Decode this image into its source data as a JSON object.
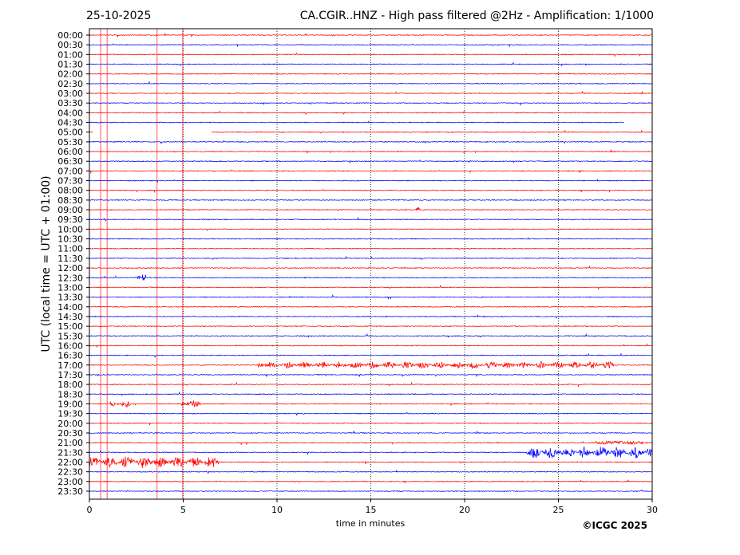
{
  "header": {
    "date": "25-10-2025",
    "title": "CA.CGIR..HNZ - High pass filtered @2Hz - Amplification: 1/1000"
  },
  "footer": {
    "copyright": "©ICGC 2025"
  },
  "chart_data": {
    "type": "line",
    "title": "CA.CGIR..HNZ - High pass filtered @2Hz - Amplification: 1/1000",
    "xlabel": "time in minutes",
    "ylabel": "UTC (local time = UTC + 01:00)",
    "xlim": [
      0,
      30
    ],
    "xticks": [
      0,
      5,
      10,
      15,
      20,
      25,
      30
    ],
    "grid": "vertical dotted lines at x ticks",
    "colors": {
      "hour": "#ff0000",
      "half_hour": "#0000ff"
    },
    "rows": [
      "00:00",
      "00:30",
      "01:00",
      "01:30",
      "02:00",
      "02:30",
      "03:00",
      "03:30",
      "04:00",
      "04:30",
      "05:00",
      "05:30",
      "06:00",
      "06:30",
      "07:00",
      "07:30",
      "08:00",
      "08:30",
      "09:00",
      "09:30",
      "10:00",
      "10:30",
      "11:00",
      "11:30",
      "12:00",
      "12:30",
      "13:00",
      "13:30",
      "14:00",
      "14:30",
      "15:00",
      "15:30",
      "16:00",
      "16:30",
      "17:00",
      "17:30",
      "18:00",
      "18:30",
      "19:00",
      "19:30",
      "20:00",
      "20:30",
      "21:00",
      "21:30",
      "22:00",
      "22:30",
      "23:00",
      "23:30"
    ],
    "trace_gaps": [
      {
        "row": "04:30",
        "from": 28.5,
        "to": 30
      },
      {
        "row": "05:00",
        "from": 0.2,
        "to": 6.5
      }
    ],
    "vertical_spikes_min": [
      0.6,
      0.95,
      3.6,
      4.97
    ],
    "events": [
      {
        "row": "17:00",
        "from": 9.0,
        "to": 28.0,
        "amplitude": "moderate"
      },
      {
        "row": "19:00",
        "from": 1.1,
        "to": 2.2,
        "amplitude": "moderate"
      },
      {
        "row": "19:00",
        "from": 4.9,
        "to": 5.9,
        "amplitude": "moderate"
      },
      {
        "row": "12:30",
        "from": 2.4,
        "to": 3.0,
        "amplitude": "moderate"
      },
      {
        "row": "21:30",
        "from": 23.3,
        "to": 30.0,
        "amplitude": "high"
      },
      {
        "row": "22:00",
        "from": 0.0,
        "to": 6.9,
        "amplitude": "high"
      },
      {
        "row": "21:00",
        "from": 27.0,
        "to": 29.5,
        "amplitude": "low"
      },
      {
        "row": "09:00",
        "from": 17.4,
        "to": 17.6,
        "amplitude": "moderate"
      },
      {
        "row": "00:00",
        "from": 11.4,
        "to": 11.6,
        "amplitude": "moderate"
      }
    ]
  }
}
